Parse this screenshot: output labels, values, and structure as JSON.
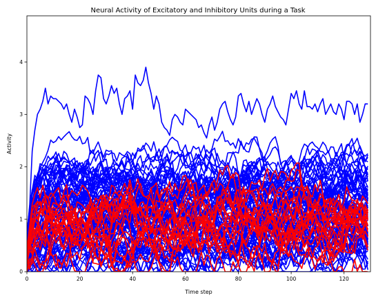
{
  "chart_data": {
    "type": "line",
    "title": "Neural Activity of Excitatory and Inhibitory Units during a Task",
    "xlabel": "Time step",
    "ylabel": "Activity",
    "xlim": [
      0,
      130
    ],
    "ylim": [
      0,
      4.88
    ],
    "xticks": [
      0,
      20,
      40,
      60,
      80,
      100,
      120
    ],
    "yticks": [
      0,
      1,
      2,
      3,
      4
    ],
    "grid": false,
    "legend": "none",
    "timesteps": 130,
    "series_groups": [
      {
        "group": "excitatory",
        "color": "#0000ff",
        "units": 80,
        "highlighted_trace": [
          0.0,
          1.2,
          2.3,
          2.7,
          3.0,
          3.1,
          3.25,
          3.5,
          3.2,
          3.35,
          3.3,
          3.3,
          3.25,
          3.2,
          3.1,
          3.2,
          3.0,
          2.85,
          3.1,
          2.95,
          2.75,
          2.8,
          3.35,
          3.3,
          3.2,
          3.0,
          3.45,
          3.75,
          3.7,
          3.3,
          3.2,
          3.35,
          3.55,
          3.4,
          3.5,
          3.2,
          3.0,
          3.3,
          3.35,
          3.45,
          3.1,
          3.75,
          3.6,
          3.55,
          3.65,
          3.9,
          3.6,
          3.4,
          3.1,
          3.35,
          3.2,
          2.85,
          2.75,
          2.7,
          2.6,
          2.9,
          3.0,
          2.95,
          2.85,
          2.8,
          3.1,
          3.05,
          3.0,
          2.95,
          2.9,
          2.75,
          2.8,
          2.65,
          2.55,
          2.8,
          2.95,
          2.7,
          2.85,
          3.1,
          3.2,
          3.25,
          3.05,
          2.9,
          2.8,
          2.95,
          3.35,
          3.4,
          3.2,
          3.05,
          3.25,
          3.0,
          3.15,
          3.3,
          3.2,
          3.0,
          2.85,
          3.1,
          3.2,
          3.35,
          3.15,
          3.05,
          2.95,
          2.9,
          2.8,
          3.1,
          3.4,
          3.3,
          3.45,
          3.2,
          3.1,
          3.45,
          3.15,
          3.15,
          3.1,
          3.2,
          3.05,
          3.2,
          3.3,
          3.0,
          3.1,
          3.2,
          3.05,
          3.0,
          3.2,
          3.1,
          2.9,
          3.25,
          3.25,
          3.2,
          3.0,
          3.2,
          2.85,
          3.0,
          3.2,
          3.2
        ]
      },
      {
        "group": "inhibitory",
        "color": "#ff0000",
        "units": 20
      }
    ]
  }
}
